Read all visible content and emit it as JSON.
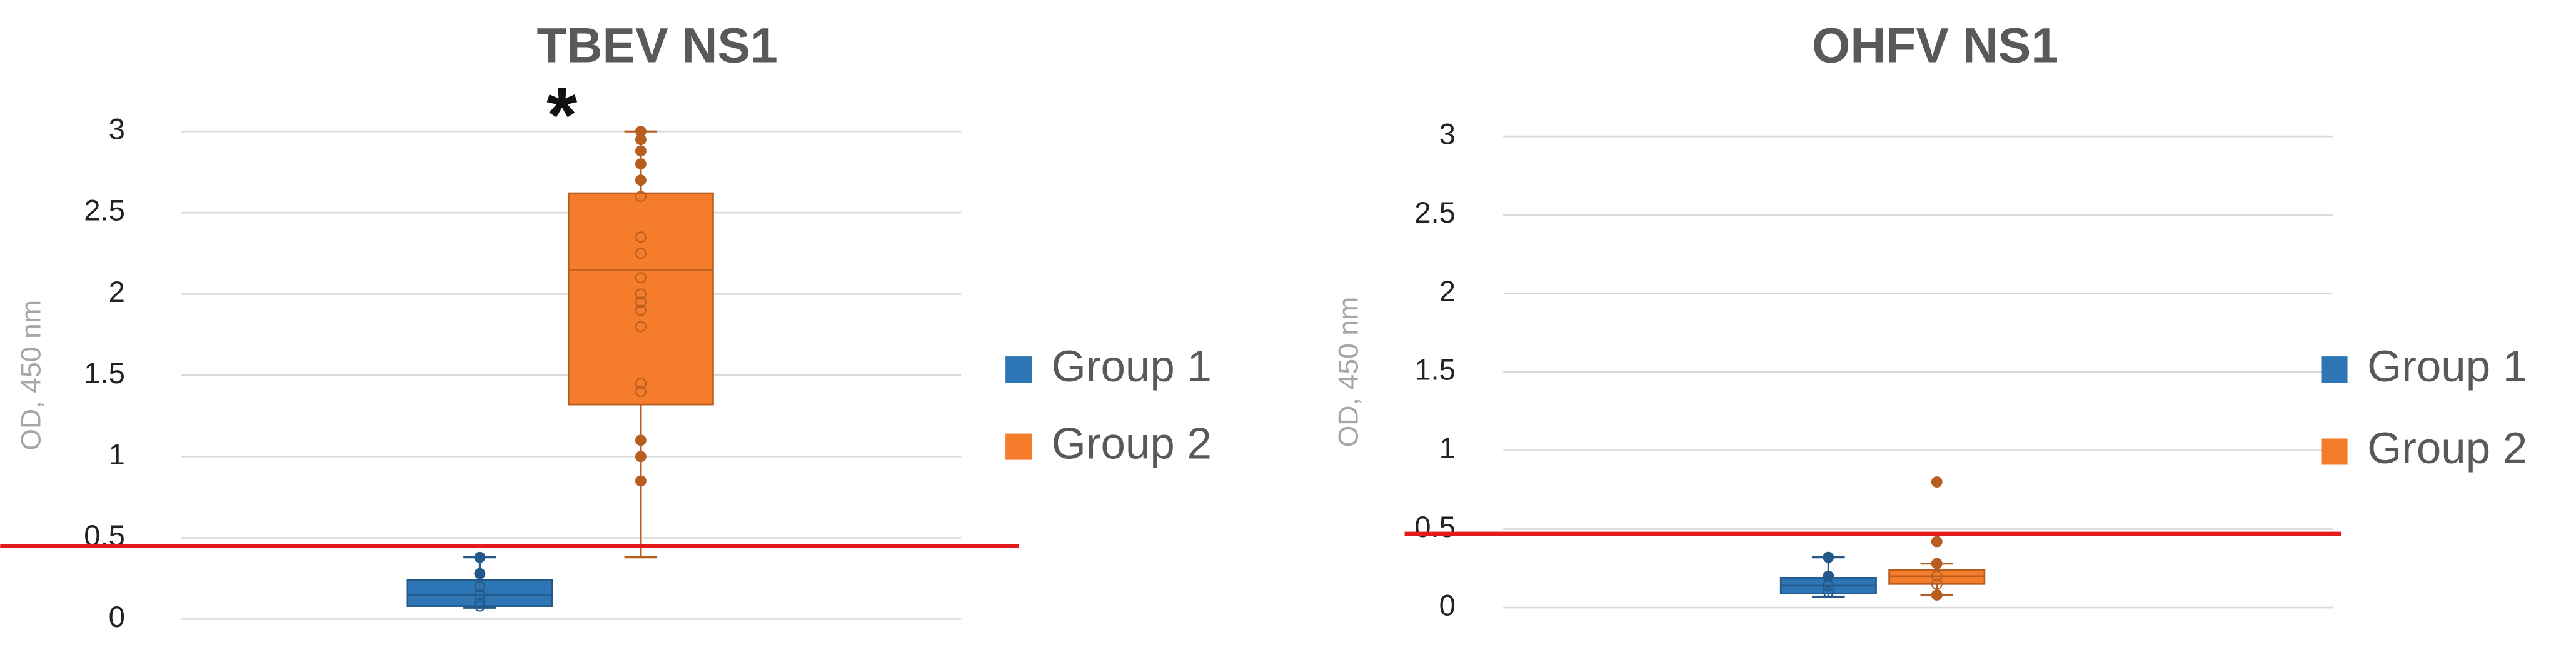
{
  "chart_data": [
    {
      "type": "box",
      "title": "TBEV NS1",
      "y_label": "OD, 450 nm",
      "annotation": "*",
      "ylim": [
        0,
        3
      ],
      "yticks": [
        0,
        0.5,
        1,
        1.5,
        2,
        2.5,
        3
      ],
      "grid": true,
      "legend_position": "right",
      "threshold": {
        "value": 0.45,
        "color": "#e31a1c"
      },
      "series": [
        {
          "name": "Group 1",
          "color": "#2e75b6",
          "min": 0.07,
          "q1": 0.08,
          "median": 0.15,
          "q3": 0.24,
          "max": 0.38,
          "points": [
            0.38,
            0.28,
            0.2,
            0.15,
            0.1,
            0.08
          ]
        },
        {
          "name": "Group 2",
          "color": "#f47c2a",
          "min": 0.38,
          "q1": 1.32,
          "median": 2.15,
          "q3": 2.62,
          "max": 3.0,
          "points": [
            3.0,
            2.95,
            2.88,
            2.8,
            2.7,
            2.6,
            2.35,
            2.25,
            2.1,
            2.0,
            1.95,
            1.9,
            1.8,
            1.45,
            1.4,
            1.1,
            1.0,
            0.85
          ]
        }
      ]
    },
    {
      "type": "box",
      "title": "OHFV NS1",
      "y_label": "OD, 450 nm",
      "ylim": [
        0,
        3
      ],
      "yticks": [
        0,
        0.5,
        1,
        1.5,
        2,
        2.5,
        3
      ],
      "grid": true,
      "legend_position": "right",
      "threshold": {
        "value": 0.47,
        "color": "#e31a1c"
      },
      "series": [
        {
          "name": "Group 1",
          "color": "#2e75b6",
          "min": 0.07,
          "q1": 0.09,
          "median": 0.14,
          "q3": 0.19,
          "max": 0.32,
          "points": [
            0.32,
            0.2,
            0.14,
            0.1
          ]
        },
        {
          "name": "Group 2",
          "color": "#f47c2a",
          "min": 0.08,
          "q1": 0.15,
          "median": 0.2,
          "q3": 0.24,
          "max": 0.28,
          "points": [
            0.8,
            0.42,
            0.28,
            0.2,
            0.15,
            0.08
          ]
        }
      ]
    }
  ]
}
